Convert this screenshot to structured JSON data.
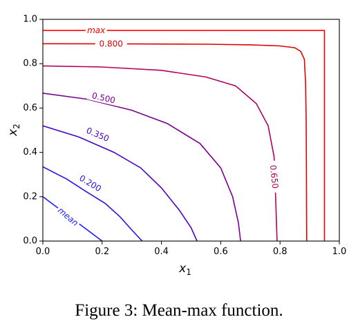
{
  "chart_data": {
    "type": "line",
    "title": "",
    "xlabel": "x",
    "xlabel_sub": "1",
    "ylabel": "x",
    "ylabel_sub": "2",
    "xlim": [
      0.0,
      1.0
    ],
    "ylim": [
      0.0,
      1.0
    ],
    "xticks": [
      "0.0",
      "0.2",
      "0.4",
      "0.6",
      "0.8",
      "1.0"
    ],
    "yticks": [
      "0.0",
      "0.2",
      "0.4",
      "0.6",
      "0.8",
      "1.0"
    ],
    "grid": false,
    "series": [
      {
        "name": "mean",
        "color": "#1a1aff",
        "points": [
          [
            0.0,
            0.2
          ],
          [
            0.05,
            0.15
          ],
          [
            0.1,
            0.1
          ],
          [
            0.15,
            0.05
          ],
          [
            0.2,
            0.0
          ]
        ]
      },
      {
        "name": "0.200",
        "color": "#2a10e8",
        "points": [
          [
            0.0,
            0.335
          ],
          [
            0.08,
            0.28
          ],
          [
            0.15,
            0.22
          ],
          [
            0.21,
            0.17
          ],
          [
            0.26,
            0.11
          ],
          [
            0.3,
            0.05
          ],
          [
            0.335,
            0.0
          ]
        ]
      },
      {
        "name": "0.350",
        "color": "#4a00c8",
        "points": [
          [
            0.0,
            0.52
          ],
          [
            0.12,
            0.47
          ],
          [
            0.24,
            0.4
          ],
          [
            0.33,
            0.33
          ],
          [
            0.4,
            0.24
          ],
          [
            0.46,
            0.14
          ],
          [
            0.5,
            0.06
          ],
          [
            0.52,
            0.0
          ]
        ]
      },
      {
        "name": "0.500",
        "color": "#7a0090",
        "points": [
          [
            0.0,
            0.667
          ],
          [
            0.15,
            0.64
          ],
          [
            0.3,
            0.59
          ],
          [
            0.42,
            0.53
          ],
          [
            0.53,
            0.44
          ],
          [
            0.6,
            0.33
          ],
          [
            0.64,
            0.2
          ],
          [
            0.66,
            0.08
          ],
          [
            0.667,
            0.0
          ]
        ]
      },
      {
        "name": "0.650",
        "color": "#b0005a",
        "points": [
          [
            0.0,
            0.79
          ],
          [
            0.2,
            0.785
          ],
          [
            0.4,
            0.77
          ],
          [
            0.55,
            0.74
          ],
          [
            0.65,
            0.7
          ],
          [
            0.72,
            0.62
          ],
          [
            0.76,
            0.52
          ],
          [
            0.78,
            0.38
          ],
          [
            0.785,
            0.2
          ],
          [
            0.79,
            0.0
          ]
        ]
      },
      {
        "name": "0.800",
        "color": "#e00000",
        "points": [
          [
            0.0,
            0.89
          ],
          [
            0.3,
            0.889
          ],
          [
            0.55,
            0.888
          ],
          [
            0.7,
            0.885
          ],
          [
            0.8,
            0.88
          ],
          [
            0.85,
            0.872
          ],
          [
            0.87,
            0.855
          ],
          [
            0.882,
            0.82
          ],
          [
            0.886,
            0.72
          ],
          [
            0.888,
            0.55
          ],
          [
            0.889,
            0.3
          ],
          [
            0.89,
            0.0
          ]
        ]
      },
      {
        "name": "max",
        "color": "#ff0000",
        "points": [
          [
            0.0,
            0.95
          ],
          [
            0.95,
            0.95
          ],
          [
            0.95,
            0.0
          ]
        ]
      }
    ],
    "contour_labels": [
      {
        "text": "mean",
        "x": 0.085,
        "y": 0.11,
        "angle": 40,
        "color": "#1a1aff"
      },
      {
        "text": "0.200",
        "x": 0.16,
        "y": 0.26,
        "angle": 31,
        "color": "#2a10e8"
      },
      {
        "text": "0.350",
        "x": 0.185,
        "y": 0.48,
        "angle": 23,
        "color": "#4a00c8"
      },
      {
        "text": "0.500",
        "x": 0.205,
        "y": 0.645,
        "angle": 13,
        "color": "#7a0090"
      },
      {
        "text": "0.650",
        "x": 0.78,
        "y": 0.29,
        "angle": 84,
        "color": "#b0005a"
      },
      {
        "text": "0.800",
        "x": 0.23,
        "y": 0.889,
        "angle": 0,
        "color": "#e00000"
      },
      {
        "text": "max",
        "x": 0.18,
        "y": 0.95,
        "angle": 0,
        "color": "#ff0000"
      }
    ]
  },
  "caption": "Figure 3: Mean-max function."
}
